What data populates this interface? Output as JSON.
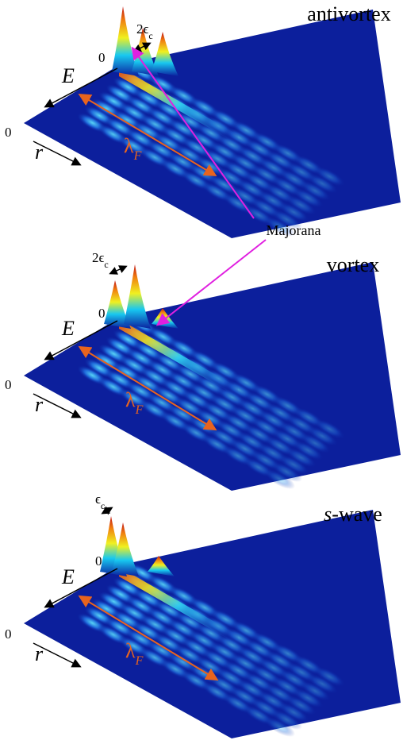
{
  "panels": [
    {
      "title": "antivortex",
      "gap": {
        "main": "2ϵ",
        "sub": "c"
      },
      "energy_zero": "0",
      "energy_axis": "E",
      "radius_zero": "0",
      "radius_axis": "r",
      "wavelength": {
        "main": "λ",
        "sub": "F"
      }
    },
    {
      "title": "vortex",
      "gap": {
        "main": "2ϵ",
        "sub": "c"
      },
      "energy_zero": "0",
      "energy_axis": "E",
      "radius_zero": "0",
      "radius_axis": "r",
      "wavelength": {
        "main": "λ",
        "sub": "F"
      }
    },
    {
      "title": {
        "italic": "s",
        "rest": "-wave"
      },
      "gap": {
        "main": "ϵ",
        "sub": "c"
      },
      "energy_zero": "0",
      "energy_axis": "E",
      "radius_zero": "0",
      "radius_axis": "r",
      "wavelength": {
        "main": "λ",
        "sub": "F"
      }
    }
  ],
  "annotation": "Majorana"
}
